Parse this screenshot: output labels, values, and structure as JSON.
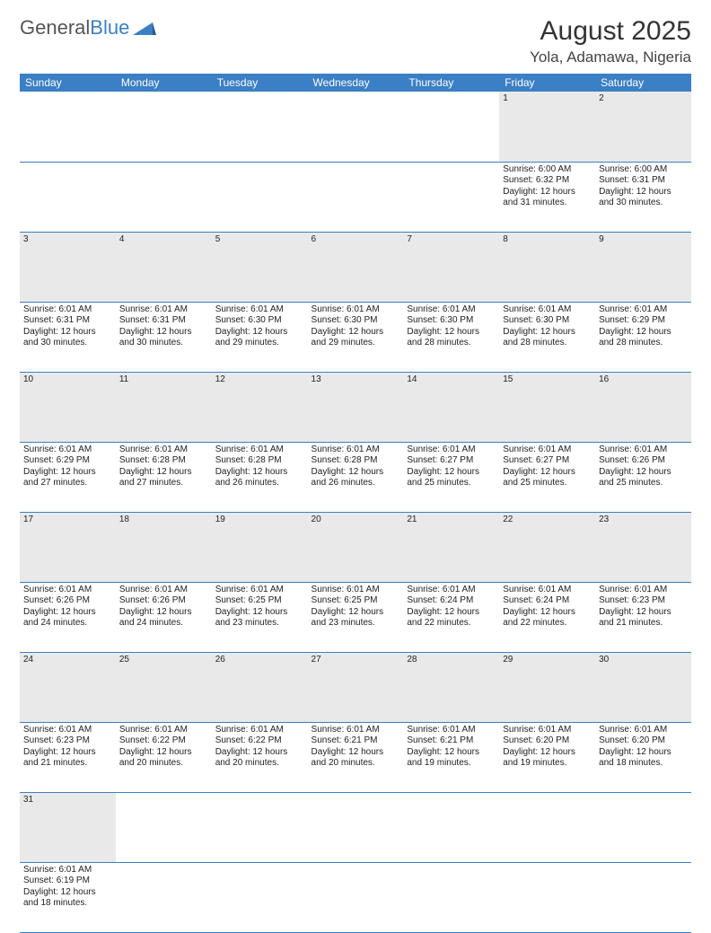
{
  "logo": {
    "text1": "General",
    "text2": "Blue",
    "sail_color": "#3b7fc4"
  },
  "header": {
    "month_title": "August 2025",
    "location": "Yola, Adamawa, Nigeria"
  },
  "colors": {
    "header_bg": "#3b7fc4",
    "header_text": "#ffffff",
    "daynum_bg": "#e9e9e9",
    "row_border": "#3b7fc4"
  },
  "day_labels": [
    "Sunday",
    "Monday",
    "Tuesday",
    "Wednesday",
    "Thursday",
    "Friday",
    "Saturday"
  ],
  "first_weekday": 5,
  "days": [
    {
      "n": 1,
      "sunrise": "6:00 AM",
      "sunset": "6:32 PM",
      "daylight": "12 hours and 31 minutes."
    },
    {
      "n": 2,
      "sunrise": "6:00 AM",
      "sunset": "6:31 PM",
      "daylight": "12 hours and 30 minutes."
    },
    {
      "n": 3,
      "sunrise": "6:01 AM",
      "sunset": "6:31 PM",
      "daylight": "12 hours and 30 minutes."
    },
    {
      "n": 4,
      "sunrise": "6:01 AM",
      "sunset": "6:31 PM",
      "daylight": "12 hours and 30 minutes."
    },
    {
      "n": 5,
      "sunrise": "6:01 AM",
      "sunset": "6:30 PM",
      "daylight": "12 hours and 29 minutes."
    },
    {
      "n": 6,
      "sunrise": "6:01 AM",
      "sunset": "6:30 PM",
      "daylight": "12 hours and 29 minutes."
    },
    {
      "n": 7,
      "sunrise": "6:01 AM",
      "sunset": "6:30 PM",
      "daylight": "12 hours and 28 minutes."
    },
    {
      "n": 8,
      "sunrise": "6:01 AM",
      "sunset": "6:30 PM",
      "daylight": "12 hours and 28 minutes."
    },
    {
      "n": 9,
      "sunrise": "6:01 AM",
      "sunset": "6:29 PM",
      "daylight": "12 hours and 28 minutes."
    },
    {
      "n": 10,
      "sunrise": "6:01 AM",
      "sunset": "6:29 PM",
      "daylight": "12 hours and 27 minutes."
    },
    {
      "n": 11,
      "sunrise": "6:01 AM",
      "sunset": "6:28 PM",
      "daylight": "12 hours and 27 minutes."
    },
    {
      "n": 12,
      "sunrise": "6:01 AM",
      "sunset": "6:28 PM",
      "daylight": "12 hours and 26 minutes."
    },
    {
      "n": 13,
      "sunrise": "6:01 AM",
      "sunset": "6:28 PM",
      "daylight": "12 hours and 26 minutes."
    },
    {
      "n": 14,
      "sunrise": "6:01 AM",
      "sunset": "6:27 PM",
      "daylight": "12 hours and 25 minutes."
    },
    {
      "n": 15,
      "sunrise": "6:01 AM",
      "sunset": "6:27 PM",
      "daylight": "12 hours and 25 minutes."
    },
    {
      "n": 16,
      "sunrise": "6:01 AM",
      "sunset": "6:26 PM",
      "daylight": "12 hours and 25 minutes."
    },
    {
      "n": 17,
      "sunrise": "6:01 AM",
      "sunset": "6:26 PM",
      "daylight": "12 hours and 24 minutes."
    },
    {
      "n": 18,
      "sunrise": "6:01 AM",
      "sunset": "6:26 PM",
      "daylight": "12 hours and 24 minutes."
    },
    {
      "n": 19,
      "sunrise": "6:01 AM",
      "sunset": "6:25 PM",
      "daylight": "12 hours and 23 minutes."
    },
    {
      "n": 20,
      "sunrise": "6:01 AM",
      "sunset": "6:25 PM",
      "daylight": "12 hours and 23 minutes."
    },
    {
      "n": 21,
      "sunrise": "6:01 AM",
      "sunset": "6:24 PM",
      "daylight": "12 hours and 22 minutes."
    },
    {
      "n": 22,
      "sunrise": "6:01 AM",
      "sunset": "6:24 PM",
      "daylight": "12 hours and 22 minutes."
    },
    {
      "n": 23,
      "sunrise": "6:01 AM",
      "sunset": "6:23 PM",
      "daylight": "12 hours and 21 minutes."
    },
    {
      "n": 24,
      "sunrise": "6:01 AM",
      "sunset": "6:23 PM",
      "daylight": "12 hours and 21 minutes."
    },
    {
      "n": 25,
      "sunrise": "6:01 AM",
      "sunset": "6:22 PM",
      "daylight": "12 hours and 20 minutes."
    },
    {
      "n": 26,
      "sunrise": "6:01 AM",
      "sunset": "6:22 PM",
      "daylight": "12 hours and 20 minutes."
    },
    {
      "n": 27,
      "sunrise": "6:01 AM",
      "sunset": "6:21 PM",
      "daylight": "12 hours and 20 minutes."
    },
    {
      "n": 28,
      "sunrise": "6:01 AM",
      "sunset": "6:21 PM",
      "daylight": "12 hours and 19 minutes."
    },
    {
      "n": 29,
      "sunrise": "6:01 AM",
      "sunset": "6:20 PM",
      "daylight": "12 hours and 19 minutes."
    },
    {
      "n": 30,
      "sunrise": "6:01 AM",
      "sunset": "6:20 PM",
      "daylight": "12 hours and 18 minutes."
    },
    {
      "n": 31,
      "sunrise": "6:01 AM",
      "sunset": "6:19 PM",
      "daylight": "12 hours and 18 minutes."
    }
  ],
  "labels": {
    "sunrise": "Sunrise:",
    "sunset": "Sunset:",
    "daylight": "Daylight:"
  }
}
